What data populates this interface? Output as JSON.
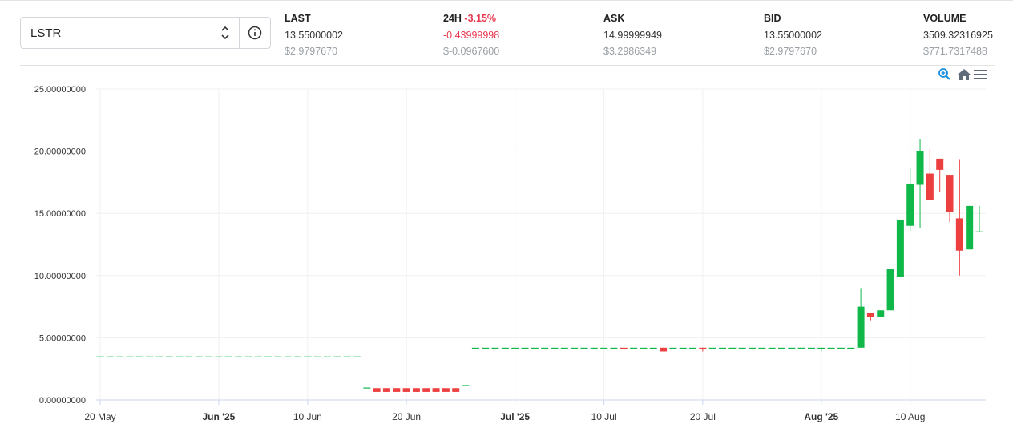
{
  "selector": {
    "symbol": "LSTR"
  },
  "stats": [
    {
      "label": "LAST",
      "value": "13.55000002",
      "usd": "$2.9797670"
    },
    {
      "label": "24H",
      "change": "-3.15%",
      "value": "-0.43999998",
      "usd": "$-0.0967600"
    },
    {
      "label": "ASK",
      "value": "14.99999949",
      "usd": "$3.2986349"
    },
    {
      "label": "BID",
      "value": "13.55000002",
      "usd": "$2.9797670"
    },
    {
      "label": "VOLUME",
      "value": "3509.32316925",
      "usd": "$771.7317488"
    }
  ],
  "chart_data": {
    "type": "candlestick",
    "up_color": "#10b84a",
    "down_color": "#ec4040",
    "grid": true,
    "x": [
      "2025-05-20",
      "2025-05-21",
      "2025-05-22",
      "2025-05-23",
      "2025-05-24",
      "2025-05-25",
      "2025-05-26",
      "2025-05-27",
      "2025-05-28",
      "2025-05-29",
      "2025-05-30",
      "2025-05-31",
      "2025-06-01",
      "2025-06-02",
      "2025-06-03",
      "2025-06-04",
      "2025-06-05",
      "2025-06-06",
      "2025-06-07",
      "2025-06-08",
      "2025-06-09",
      "2025-06-10",
      "2025-06-11",
      "2025-06-12",
      "2025-06-13",
      "2025-06-14",
      "2025-06-15",
      "2025-06-16",
      "2025-06-17",
      "2025-06-18",
      "2025-06-19",
      "2025-06-20",
      "2025-06-21",
      "2025-06-22",
      "2025-06-23",
      "2025-06-24",
      "2025-06-25",
      "2025-06-26",
      "2025-06-27",
      "2025-06-28",
      "2025-06-29",
      "2025-06-30",
      "2025-07-01",
      "2025-07-02",
      "2025-07-03",
      "2025-07-04",
      "2025-07-05",
      "2025-07-06",
      "2025-07-07",
      "2025-07-08",
      "2025-07-09",
      "2025-07-10",
      "2025-07-11",
      "2025-07-12",
      "2025-07-13",
      "2025-07-14",
      "2025-07-15",
      "2025-07-16",
      "2025-07-17",
      "2025-07-18",
      "2025-07-19",
      "2025-07-20",
      "2025-07-21",
      "2025-07-22",
      "2025-07-23",
      "2025-07-24",
      "2025-07-25",
      "2025-07-26",
      "2025-07-27",
      "2025-07-28",
      "2025-07-29",
      "2025-07-30",
      "2025-07-31",
      "2025-08-01",
      "2025-08-02",
      "2025-08-03",
      "2025-08-04",
      "2025-08-05",
      "2025-08-06",
      "2025-08-07",
      "2025-08-08",
      "2025-08-09",
      "2025-08-10",
      "2025-08-11",
      "2025-08-12",
      "2025-08-13",
      "2025-08-14",
      "2025-08-15",
      "2025-08-16",
      "2025-08-17"
    ],
    "open": [
      3.5,
      3.5,
      3.5,
      3.5,
      3.5,
      3.5,
      3.5,
      3.5,
      3.5,
      3.5,
      3.5,
      3.5,
      3.5,
      3.5,
      3.5,
      3.5,
      3.5,
      3.5,
      3.5,
      3.5,
      3.5,
      3.5,
      3.5,
      3.5,
      3.5,
      3.5,
      3.5,
      1.0,
      0.95,
      0.95,
      0.95,
      0.95,
      0.95,
      0.95,
      0.95,
      0.95,
      0.95,
      1.2,
      4.2,
      4.2,
      4.2,
      4.2,
      4.2,
      4.2,
      4.2,
      4.2,
      4.2,
      4.2,
      4.2,
      4.2,
      4.2,
      4.2,
      4.2,
      4.2,
      4.2,
      4.2,
      4.2,
      4.2,
      4.2,
      4.2,
      4.2,
      4.2,
      4.2,
      4.2,
      4.2,
      4.2,
      4.2,
      4.2,
      4.2,
      4.2,
      4.2,
      4.2,
      4.2,
      4.2,
      4.2,
      4.2,
      4.2,
      4.2,
      7.0,
      6.7,
      7.2,
      9.9,
      14.0,
      17.3,
      18.2,
      19.4,
      18.1,
      14.6,
      12.1,
      13.55
    ],
    "high": [
      3.5,
      3.5,
      3.5,
      3.5,
      3.5,
      3.5,
      3.5,
      3.5,
      3.5,
      3.5,
      3.5,
      3.5,
      3.5,
      3.5,
      3.5,
      3.5,
      3.5,
      3.5,
      3.5,
      3.5,
      3.5,
      3.5,
      3.5,
      3.5,
      3.5,
      3.5,
      3.5,
      1.0,
      0.95,
      0.95,
      0.95,
      0.95,
      0.95,
      0.95,
      0.95,
      0.95,
      0.95,
      1.2,
      4.2,
      4.2,
      4.2,
      4.2,
      4.2,
      4.2,
      4.2,
      4.2,
      4.2,
      4.2,
      4.2,
      4.2,
      4.2,
      4.2,
      4.2,
      4.2,
      4.2,
      4.2,
      4.2,
      4.2,
      4.2,
      4.2,
      4.2,
      4.2,
      4.2,
      4.2,
      4.2,
      4.2,
      4.2,
      4.2,
      4.2,
      4.2,
      4.2,
      4.2,
      4.2,
      4.2,
      4.2,
      4.2,
      4.2,
      9.0,
      7.0,
      7.2,
      10.5,
      14.5,
      18.7,
      21.0,
      20.2,
      19.4,
      18.1,
      19.3,
      15.6,
      15.6
    ],
    "low": [
      3.5,
      3.5,
      3.5,
      3.5,
      3.5,
      3.5,
      3.5,
      3.5,
      3.5,
      3.5,
      3.5,
      3.5,
      3.5,
      3.5,
      3.5,
      3.5,
      3.5,
      3.5,
      3.5,
      3.5,
      3.5,
      3.5,
      3.5,
      3.5,
      3.5,
      3.5,
      3.5,
      1.0,
      0.65,
      0.65,
      0.65,
      0.65,
      0.65,
      0.65,
      0.65,
      0.65,
      0.65,
      1.2,
      4.2,
      4.2,
      4.2,
      4.2,
      4.2,
      4.2,
      4.2,
      4.2,
      4.2,
      4.2,
      4.2,
      4.2,
      4.2,
      4.2,
      4.2,
      4.19,
      4.2,
      4.2,
      4.2,
      3.9,
      4.2,
      4.2,
      4.2,
      3.9,
      4.2,
      4.2,
      4.2,
      4.2,
      4.2,
      4.2,
      4.2,
      4.2,
      4.2,
      4.2,
      4.2,
      3.9,
      4.2,
      4.2,
      4.2,
      4.2,
      6.4,
      6.7,
      7.2,
      9.9,
      13.6,
      13.8,
      16.1,
      16.7,
      14.3,
      10.0,
      12.1,
      13.55
    ],
    "close": [
      3.5,
      3.5,
      3.5,
      3.5,
      3.5,
      3.5,
      3.5,
      3.5,
      3.5,
      3.5,
      3.5,
      3.5,
      3.5,
      3.5,
      3.5,
      3.5,
      3.5,
      3.5,
      3.5,
      3.5,
      3.5,
      3.5,
      3.5,
      3.5,
      3.5,
      3.5,
      3.5,
      1.0,
      0.65,
      0.65,
      0.65,
      0.65,
      0.65,
      0.65,
      0.65,
      0.65,
      0.65,
      1.2,
      4.2,
      4.2,
      4.2,
      4.2,
      4.2,
      4.2,
      4.2,
      4.2,
      4.2,
      4.2,
      4.2,
      4.2,
      4.2,
      4.2,
      4.2,
      4.19,
      4.2,
      4.2,
      4.2,
      3.9,
      4.2,
      4.2,
      4.2,
      4.19,
      4.2,
      4.2,
      4.2,
      4.2,
      4.2,
      4.2,
      4.2,
      4.2,
      4.2,
      4.2,
      4.2,
      4.2,
      4.2,
      4.2,
      4.2,
      7.5,
      6.7,
      7.2,
      10.5,
      14.5,
      17.4,
      20.0,
      16.1,
      18.5,
      15.1,
      12.0,
      15.6,
      13.55
    ],
    "xlim": [
      "2025-05-20",
      "2025-08-17"
    ],
    "xticks": [
      {
        "value": "2025-05-20",
        "label": "20 May"
      },
      {
        "value": "2025-06-01",
        "label": "Jun '25"
      },
      {
        "value": "2025-06-10",
        "label": "10 Jun"
      },
      {
        "value": "2025-06-20",
        "label": "20 Jun"
      },
      {
        "value": "2025-07-01",
        "label": "Jul '25"
      },
      {
        "value": "2025-07-10",
        "label": "10 Jul"
      },
      {
        "value": "2025-07-20",
        "label": "20 Jul"
      },
      {
        "value": "2025-08-01",
        "label": "Aug '25"
      },
      {
        "value": "2025-08-10",
        "label": "10 Aug"
      }
    ],
    "ylim": [
      0,
      25
    ],
    "yticks": [
      {
        "value": 0,
        "label": "0.00000000"
      },
      {
        "value": 5,
        "label": "5.00000000"
      },
      {
        "value": 10,
        "label": "10.00000000"
      },
      {
        "value": 15,
        "label": "15.00000000"
      },
      {
        "value": 20,
        "label": "20.00000000"
      },
      {
        "value": 25,
        "label": "25.00000000"
      }
    ]
  }
}
